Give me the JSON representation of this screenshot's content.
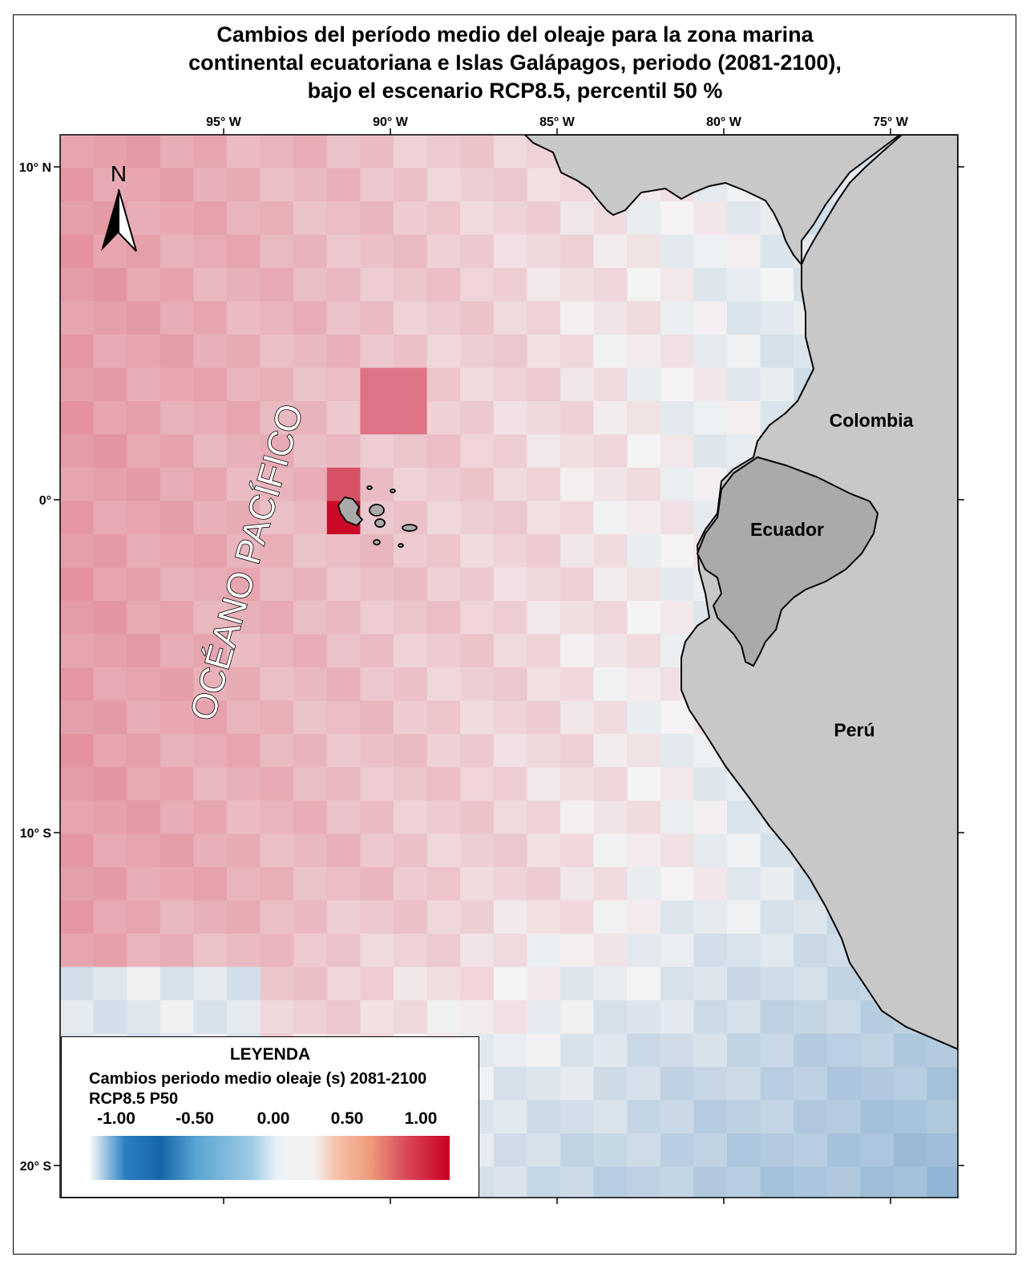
{
  "title": {
    "line1": "Cambios del período medio del oleaje para la zona marina",
    "line2": "continental ecuatoriana e Islas Galápagos, periodo (2081-2100),",
    "line3": "bajo el escenario RCP8.5, percentil 50 %"
  },
  "map": {
    "lon_range": [
      -100,
      -73
    ],
    "lat_range": [
      -21,
      11
    ],
    "lon_ticks": [
      "95° W",
      "90° W",
      "85° W",
      "80° W",
      "75° W"
    ],
    "lat_ticks": [
      "10° N",
      "0°",
      "10° S",
      "20° S"
    ],
    "north_arrow_label": "N",
    "ocean_label": "OCÉANO PACÍFICO",
    "countries": [
      {
        "name": "Colombia",
        "fill": "#c8c8c8"
      },
      {
        "name": "Ecuador",
        "fill": "#aaaaaa"
      },
      {
        "name": "Perú",
        "fill": "#c8c8c8"
      }
    ],
    "land_color": "#c8c8c8",
    "ecuador_color": "#aaaaaa"
  },
  "legend": {
    "title": "LEYENDA",
    "subtitle_line1": "Cambios periodo medio oleaje (s) 2081-2100",
    "subtitle_line2": "RCP8.5 P50",
    "ticks": [
      "-1.00",
      "-0.50",
      "0.00",
      "0.50",
      "1.00"
    ],
    "range": [
      -1,
      1
    ],
    "colors": {
      "low": "#0a5fa8",
      "mid": "#f4f4f4",
      "high": "#c9001f"
    }
  }
}
